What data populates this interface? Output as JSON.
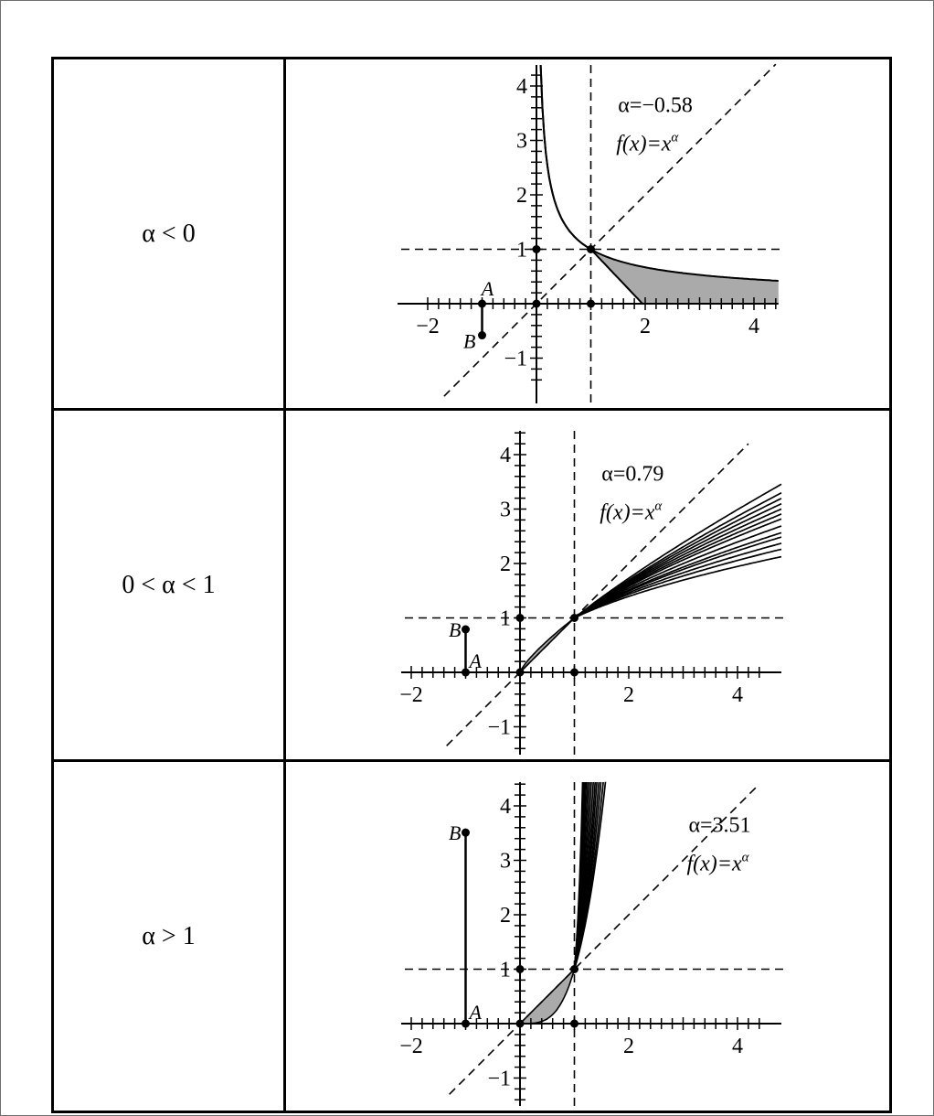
{
  "rows": [
    {
      "case_label": "α < 0",
      "alpha_text": "α=−0.58",
      "formula": "f(x)=x",
      "formula_exp": "α",
      "alpha": -0.58,
      "point_a_label": "A",
      "point_b_label": "B",
      "segment_ab_value": -0.58,
      "family": "band"
    },
    {
      "case_label": "0 < α < 1",
      "alpha_text": "α=0.79",
      "formula": "f(x)=x",
      "formula_exp": "α",
      "alpha": 0.79,
      "point_a_label": "A",
      "point_b_label": "B",
      "segment_ab_value": 0.79,
      "family": "lines",
      "family_alphas": [
        0.48,
        0.52,
        0.55,
        0.58,
        0.6,
        0.63,
        0.66,
        0.68,
        0.7,
        0.72,
        0.74,
        0.76,
        0.79
      ]
    },
    {
      "case_label": "α > 1",
      "alpha_text": "α=3.51",
      "formula": "f(x)=x",
      "formula_exp": "α",
      "alpha": 3.51,
      "point_a_label": "A",
      "point_b_label": "B",
      "segment_ab_value": 3.51,
      "family": "lines",
      "family_alphas": [
        3.3,
        3.5,
        3.75,
        4.0,
        4.3,
        4.6,
        5.0,
        5.5,
        6.1,
        6.8,
        7.6,
        8.5,
        9.5,
        10.6
      ]
    }
  ],
  "axes": {
    "x_ticks": [
      "−2",
      "2",
      "4"
    ],
    "y_ticks": [
      "−1",
      "1",
      "2",
      "3",
      "4"
    ]
  },
  "colors": {
    "shade": "#aaaaaa",
    "line": "#000000"
  }
}
